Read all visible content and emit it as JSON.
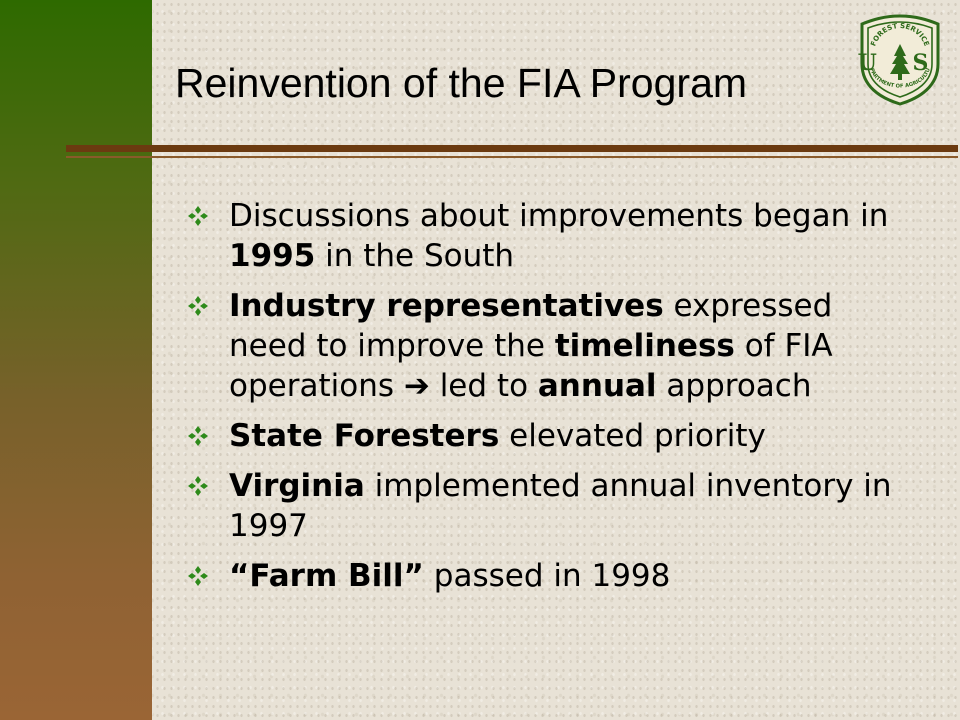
{
  "slide": {
    "title": "Reinvention of the FIA Program",
    "logo": {
      "icon": "forest-service-shield-icon",
      "top_text": "FOREST SERVICE",
      "bottom_text": "DEPARTMENT OF AGRICULTURE",
      "letters": "U S"
    },
    "bullet_icon": "four-diamond-bullet-icon",
    "colors": {
      "band_top": "#2e6a00",
      "band_bottom": "#9a6535",
      "rule": "#6b3a10",
      "bullet": "#2e8a1a",
      "background": "#e8e2d6"
    },
    "bullets": [
      {
        "t1": "Discussions about improvements began in ",
        "b1": "1995",
        "t2": " in the South"
      },
      {
        "b1": "Industry representatives",
        "t1": " expressed need to improve the ",
        "b2": "timeliness",
        "t2": " of FIA operations ",
        "arrow": "➔",
        "t3": " led to ",
        "b3": "annual",
        "t4": " approach"
      },
      {
        "b1": "State Foresters",
        "t1": " elevated priority"
      },
      {
        "b1": "Virginia",
        "t1": " implemented annual inventory in 1997"
      },
      {
        "b1": "“Farm Bill”",
        "t1": " passed in 1998"
      }
    ]
  }
}
